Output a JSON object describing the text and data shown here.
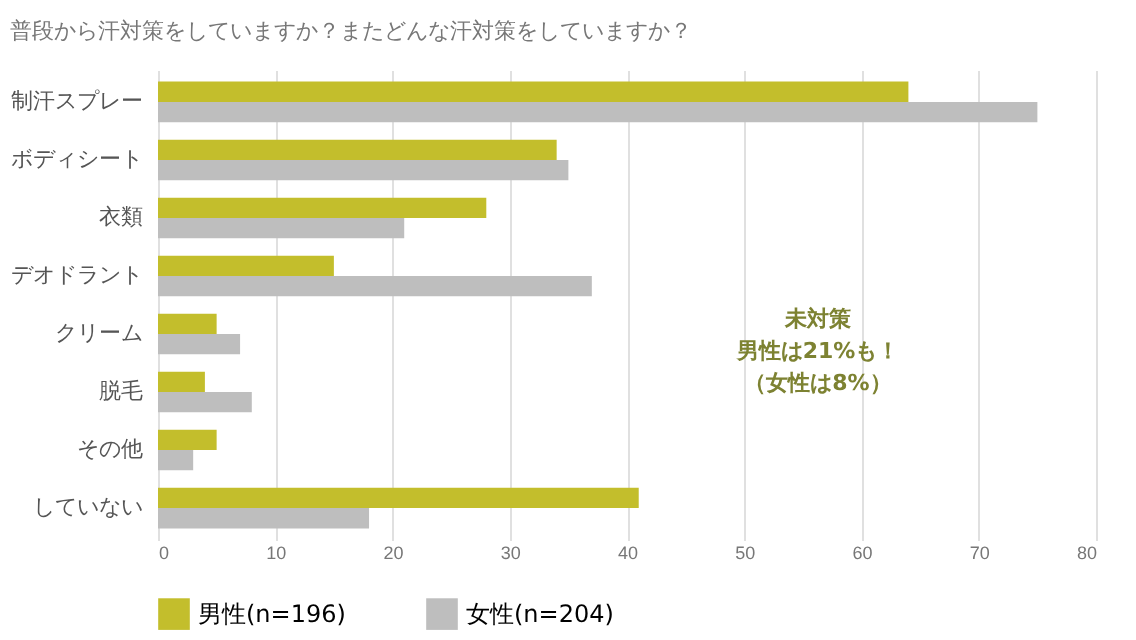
{
  "chart_data": {
    "type": "bar",
    "orientation": "horizontal",
    "title": "普段から汗対策をしていますか？またどんな汗対策をしていますか？",
    "categories": [
      "制汗スプレー",
      "ボディシート",
      "衣類",
      "デオドラント",
      "クリーム",
      "脱毛",
      "その他",
      "していない"
    ],
    "series": [
      {
        "name": "男性(n=196)",
        "color": "#c3be2c",
        "values": [
          64,
          34,
          28,
          15,
          5,
          4,
          5,
          41
        ]
      },
      {
        "name": "女性(n=204)",
        "color": "#bebebe",
        "values": [
          75,
          35,
          21,
          37,
          7,
          8,
          3,
          18
        ]
      }
    ],
    "xlim": [
      0,
      80
    ],
    "xticks": [
      0,
      10,
      20,
      30,
      40,
      50,
      60,
      70,
      80
    ],
    "grid": "x",
    "legend": "bottom",
    "annotations": [
      "未対策",
      "男性は21%も！",
      "（女性は8%）"
    ]
  }
}
